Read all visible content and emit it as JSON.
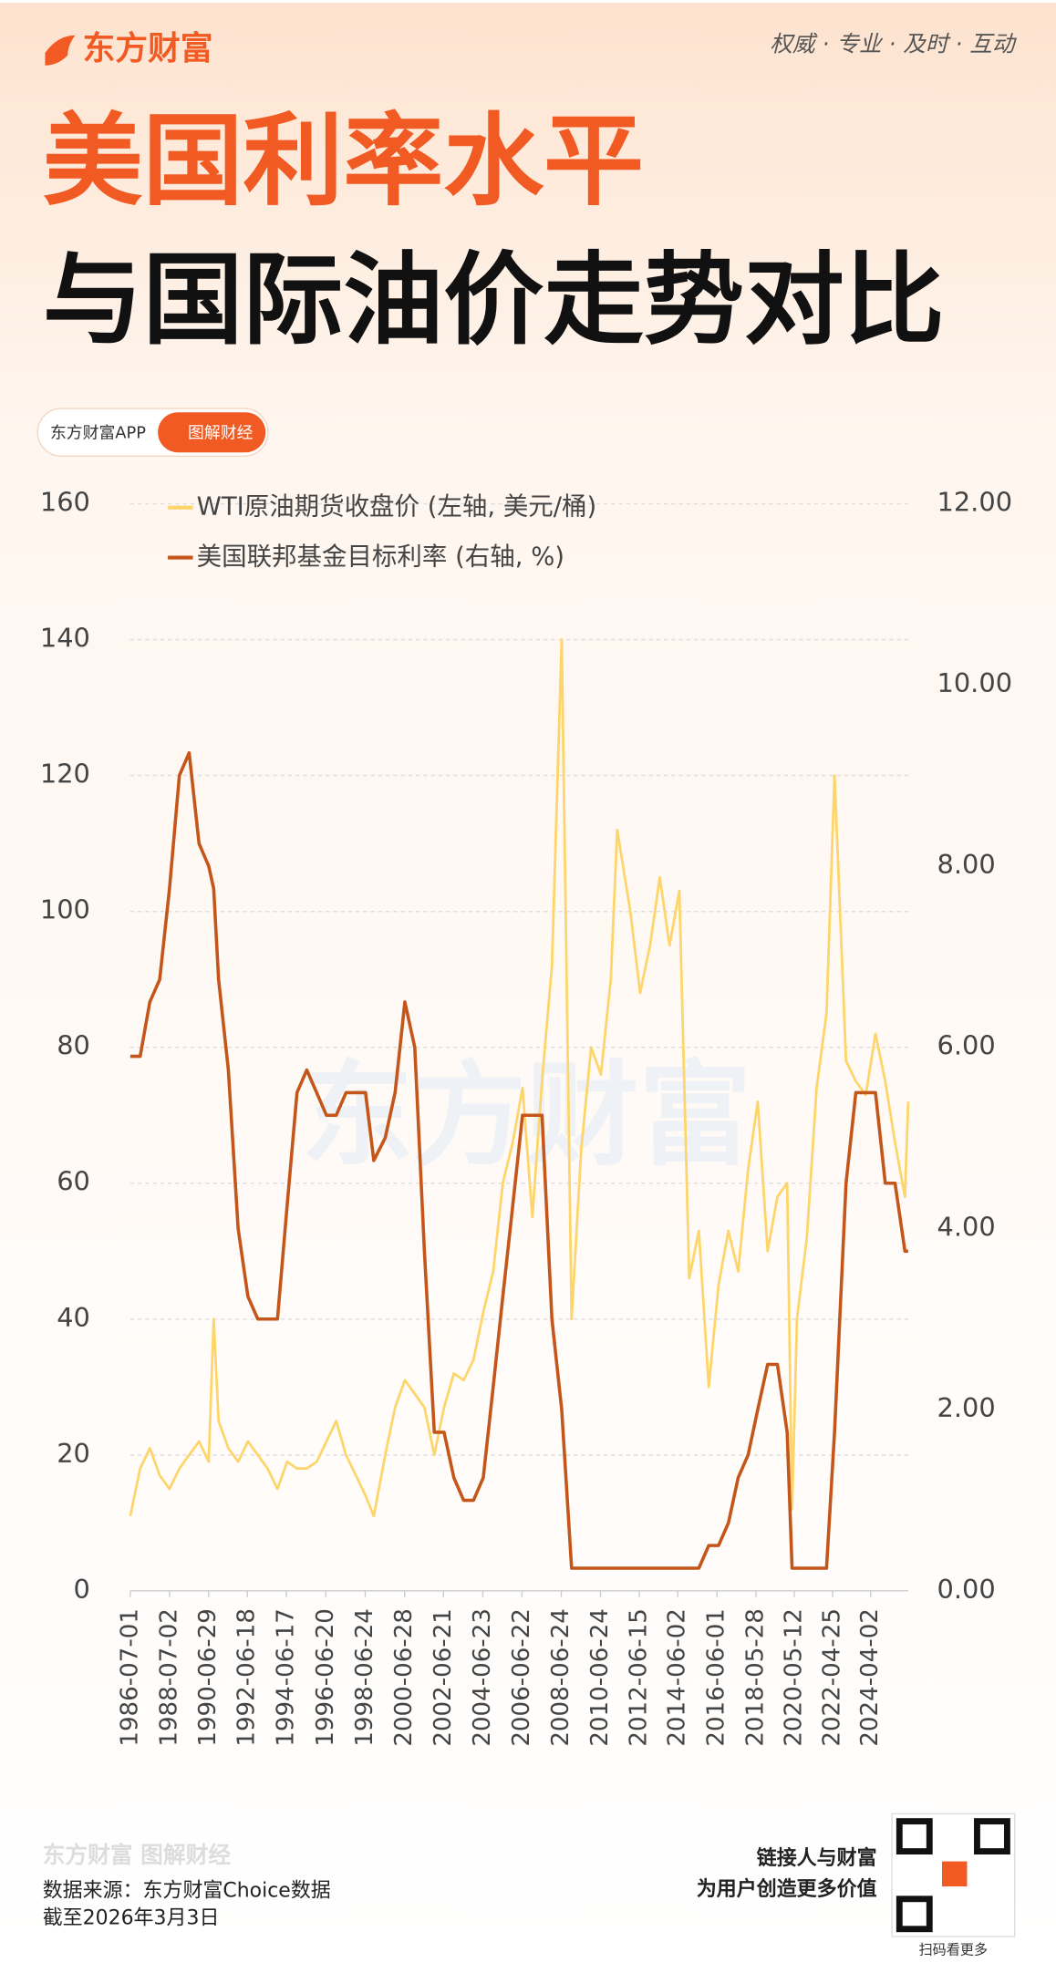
{
  "header": {
    "logo": "东方财富",
    "slogan": "权威 · 专业 · 及时 · 互动",
    "title_line1": "美国利率水平",
    "title_line2": "与国际油价走势对比",
    "app_badge": "东方财富APP",
    "app_button": "图解财经",
    "watermark": "东方财富"
  },
  "footer": {
    "brand": "东方财富 图解财经",
    "source": "数据来源：东方财富Choice数据",
    "as_of": "截至2026年3月3日",
    "tagline1": "链接人与财富",
    "tagline2": "为用户创造更多价值",
    "qr_caption": "扫码看更多"
  },
  "chart_data": {
    "type": "line",
    "x": [
      "1986-07-01",
      "1987-01-01",
      "1987-07-01",
      "1988-01-01",
      "1988-07-01",
      "1989-01-01",
      "1989-07-01",
      "1990-01-01",
      "1990-07-01",
      "1990-10-01",
      "1991-01-01",
      "1991-07-01",
      "1992-01-01",
      "1992-07-01",
      "1993-01-01",
      "1993-07-01",
      "1994-01-01",
      "1994-07-01",
      "1995-01-01",
      "1995-07-01",
      "1996-01-01",
      "1996-07-01",
      "1997-01-01",
      "1997-07-01",
      "1998-01-01",
      "1998-07-01",
      "1998-12-01",
      "1999-07-01",
      "2000-01-01",
      "2000-07-01",
      "2001-01-01",
      "2001-07-01",
      "2002-01-01",
      "2002-07-01",
      "2003-01-01",
      "2003-07-01",
      "2004-01-01",
      "2004-07-01",
      "2005-01-01",
      "2005-07-01",
      "2006-01-01",
      "2006-07-01",
      "2007-01-01",
      "2007-07-01",
      "2008-01-01",
      "2008-07-01",
      "2009-01-01",
      "2009-07-01",
      "2010-01-01",
      "2010-07-01",
      "2011-01-01",
      "2011-05-01",
      "2012-01-01",
      "2012-07-01",
      "2013-01-01",
      "2013-07-01",
      "2014-01-01",
      "2014-07-01",
      "2015-01-01",
      "2015-07-01",
      "2016-01-01",
      "2016-07-01",
      "2017-01-01",
      "2017-07-01",
      "2018-01-01",
      "2018-07-01",
      "2019-01-01",
      "2019-07-01",
      "2020-01-01",
      "2020-04-01",
      "2020-07-01",
      "2021-01-01",
      "2021-07-01",
      "2022-01-01",
      "2022-06-01",
      "2023-01-01",
      "2023-07-01",
      "2024-01-01",
      "2024-07-01",
      "2025-01-01",
      "2025-07-01",
      "2026-01-01",
      "2026-03-03"
    ],
    "xlim": [
      "1986-07-01",
      "2026-03-03"
    ],
    "xticks": [
      "1986-07-01",
      "1988-07-02",
      "1990-06-29",
      "1992-06-18",
      "1994-06-17",
      "1996-06-20",
      "1998-06-24",
      "2000-06-28",
      "2002-06-21",
      "2004-06-23",
      "2006-06-22",
      "2008-06-24",
      "2010-06-24",
      "2012-06-15",
      "2014-06-02",
      "2016-06-01",
      "2018-05-28",
      "2020-05-12",
      "2022-04-25",
      "2024-04-02"
    ],
    "ylim": [
      0,
      160
    ],
    "yticks": [
      0,
      20,
      40,
      60,
      80,
      100,
      120,
      140,
      160
    ],
    "y2lim": [
      0,
      12
    ],
    "y2ticks": [
      {
        "value": 0,
        "label": "0.00"
      },
      {
        "value": 2,
        "label": "2.00"
      },
      {
        "value": 4,
        "label": "4.00"
      },
      {
        "value": 6,
        "label": "6.00"
      },
      {
        "value": 8,
        "label": "8.00"
      },
      {
        "value": 10,
        "label": "10.00"
      },
      {
        "value": 12,
        "label": "12.00"
      }
    ],
    "grid": true,
    "series": [
      {
        "name": "WTI原油期货收盘价 (左轴, 美元/桶)",
        "color": "#fdd56a",
        "values": [
          11,
          18,
          21,
          17,
          15,
          18,
          20,
          22,
          19,
          40,
          25,
          21,
          19,
          22,
          20,
          18,
          15,
          19,
          18,
          18,
          19,
          22,
          25,
          20,
          17,
          14,
          11,
          20,
          27,
          31,
          29,
          27,
          20,
          27,
          32,
          31,
          34,
          41,
          47,
          60,
          66,
          74,
          55,
          75,
          92,
          140,
          40,
          65,
          80,
          76,
          90,
          112,
          100,
          88,
          95,
          105,
          95,
          103,
          46,
          53,
          30,
          45,
          53,
          47,
          62,
          72,
          50,
          58,
          60,
          12,
          40,
          52,
          74,
          85,
          120,
          78,
          75,
          73,
          82,
          75,
          66,
          58,
          72
        ]
      },
      {
        "name": "美国联邦基金目标利率 (右轴, %)",
        "color": "#c4561a",
        "axis": "y2",
        "values": [
          5.9,
          5.9,
          6.5,
          6.75,
          7.75,
          9.0,
          9.25,
          8.25,
          8.0,
          7.75,
          6.75,
          5.75,
          4.0,
          3.25,
          3.0,
          3.0,
          3.0,
          4.25,
          5.5,
          5.75,
          5.5,
          5.25,
          5.25,
          5.5,
          5.5,
          5.5,
          4.75,
          5.0,
          5.5,
          6.5,
          6.0,
          3.75,
          1.75,
          1.75,
          1.25,
          1.0,
          1.0,
          1.25,
          2.25,
          3.25,
          4.25,
          5.25,
          5.25,
          5.25,
          3.0,
          2.0,
          0.25,
          0.25,
          0.25,
          0.25,
          0.25,
          0.25,
          0.25,
          0.25,
          0.25,
          0.25,
          0.25,
          0.25,
          0.25,
          0.25,
          0.5,
          0.5,
          0.75,
          1.25,
          1.5,
          2.0,
          2.5,
          2.5,
          1.75,
          0.25,
          0.25,
          0.25,
          0.25,
          0.25,
          1.75,
          4.5,
          5.5,
          5.5,
          5.5,
          4.5,
          4.5,
          3.75,
          3.75
        ]
      }
    ]
  }
}
